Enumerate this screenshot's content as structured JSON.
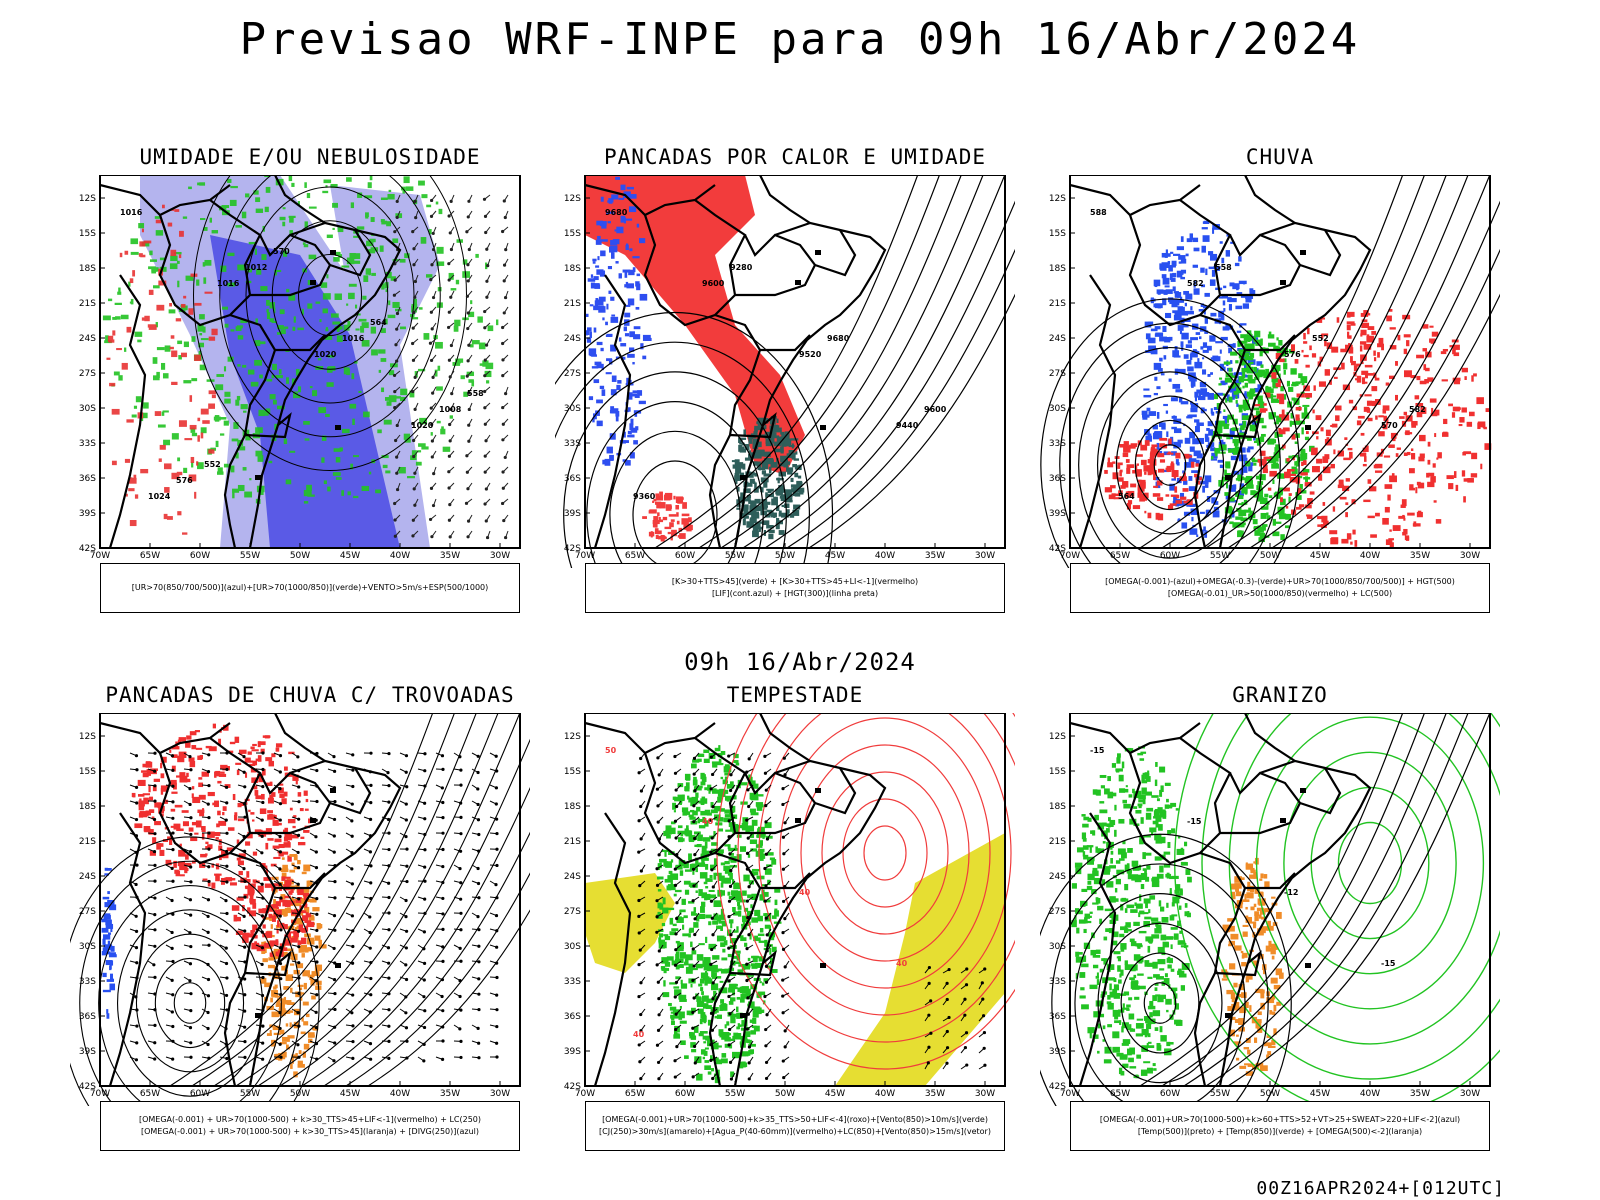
{
  "title": "Previsao WRF-INPE  para 09h 16/Abr/2024",
  "subtitle": "09h 16/Abr/2024",
  "footer": "00Z16APR2024+[012UTC]",
  "axes": {
    "lat_labels": [
      "12S",
      "15S",
      "18S",
      "21S",
      "24S",
      "27S",
      "30S",
      "33S",
      "36S",
      "39S",
      "42S"
    ],
    "lon_labels": [
      "70W",
      "65W",
      "60W",
      "55W",
      "50W",
      "45W",
      "40W",
      "35W",
      "30W"
    ]
  },
  "panels": [
    {
      "title": "UMIDADE E/OU NEBULOSIDADE",
      "legend": [
        "[UR>70(850/700/500)](azul)+[UR>70(1000/850)](verde)+VENTO>5m/s+ESP(500/1000)"
      ],
      "contour_labels": [
        "1016",
        "1016",
        "1020",
        "1020",
        "1024",
        "1012",
        "1016",
        "1008",
        "576",
        "570",
        "564",
        "558",
        "552"
      ],
      "colors": {
        "humidity_high": "#5a5ae6",
        "humidity_light": "#b4b4ee",
        "humidity_low": "#22c322",
        "thickness": "#e83232"
      }
    },
    {
      "title": "PANCADAS POR CALOR E UMIDADE",
      "legend": [
        "[K>30+TTS>45](verde) + [K>30+TTS>45+LI<-1](vermelho)",
        "[LIF](cont.azul) + [HGT(300)](linha preta)"
      ],
      "contour_labels": [
        "9680",
        "9600",
        "9520",
        "9440",
        "9360",
        "9280",
        "9680",
        "9600"
      ],
      "colors": {
        "instab": "#f23c3c",
        "k_tts": "#2e5e5a",
        "lif": "#2e4ef0",
        "hgt": "#000000"
      }
    },
    {
      "title": "CHUVA",
      "legend": [
        "[OMEGA(-0.001)-(azul)+OMEGA(-0.3)-(verde)+UR>70(1000/850/700/500)] + HGT(500)",
        "[OMEGA(-0.01)_UR>50(1000/850)(vermelho) + LC(500)"
      ],
      "contour_labels": [
        "588",
        "582",
        "576",
        "570",
        "564",
        "558",
        "552",
        "582"
      ],
      "colors": {
        "omega_blue": "#2850f0",
        "omega_green": "#22c322",
        "omega_red": "#f03030"
      }
    },
    {
      "title": "PANCADAS DE CHUVA C/ TROVOADAS",
      "legend": [
        "[OMEGA(-0.001) + UR>70(1000-500) + k>30_TTS>45+LIF<-1](vermelho) + LC(250)",
        "[OMEGA(-0.001) + UR>70(1000-500) + k>30_TTS>45](laranja) + [DIVG(250)](azul)"
      ],
      "contour_labels": [],
      "colors": {
        "red": "#f03030",
        "orange": "#f08c28",
        "blue": "#2850f0"
      }
    },
    {
      "title": "TEMPESTADE",
      "legend": [
        "[OMEGA(-0.001)+UR>70(1000-500)+k>35_TTS>50+LIF<-4](roxo)+[Vento(850)>10m/s](verde)",
        "[CJ(250)>30m/s](amarelo)+[Agua_P(40-60mm)](vermelho)+LC(850)+[Vento(850)>15m/s](vetor)"
      ],
      "contour_labels": [
        "50",
        "40",
        "40",
        "40",
        "40"
      ],
      "colors": {
        "wind": "#22c322",
        "jet": "#e6de32",
        "water": "#f03c3c"
      }
    },
    {
      "title": "GRANIZO",
      "legend": [
        "[OMEGA(-0.001)+UR>70(1000-500)+k>60+TTS>52+VT>25+SWEAT>220+LIF<-2](azul)",
        "[Temp(500)](preto) + [Temp(850)](verde) + [OMEGA(500)<-2](laranja)"
      ],
      "contour_labels": [
        "-15",
        "-15",
        "-12",
        "-15"
      ],
      "colors": {
        "temp850": "#22c322",
        "omega500": "#f08c28",
        "temp500": "#000000"
      }
    }
  ]
}
